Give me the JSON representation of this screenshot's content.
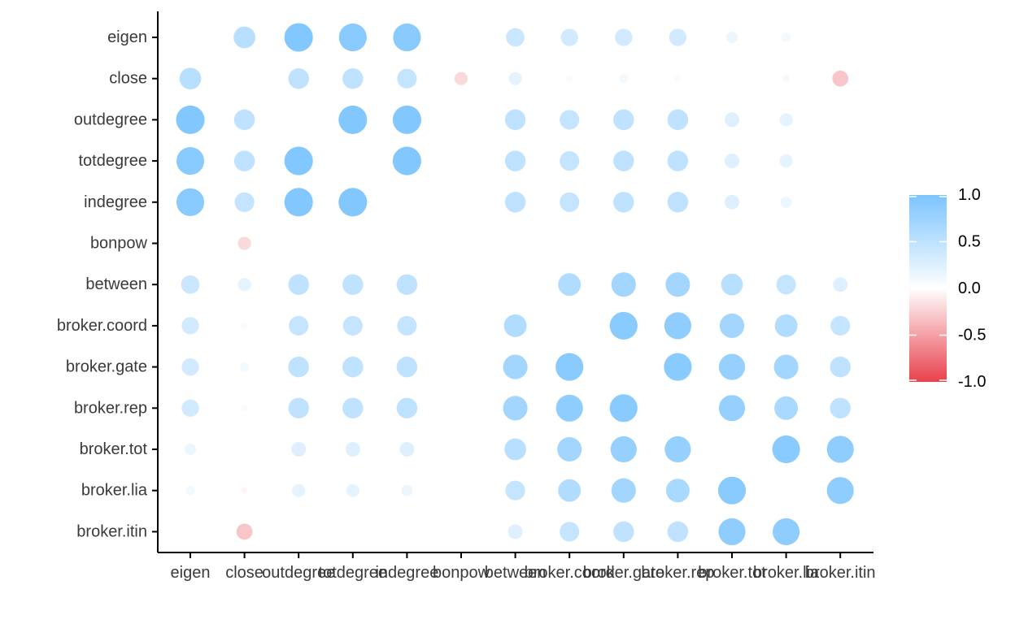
{
  "chart_data": {
    "type": "heatmap",
    "title": "",
    "xlabel": "",
    "ylabel": "",
    "row_labels": [
      "eigen",
      "close",
      "outdegree",
      "totdegree",
      "indegree",
      "bonpow",
      "between",
      "broker.coord",
      "broker.gate",
      "broker.rep",
      "broker.tot",
      "broker.lia",
      "broker.itin"
    ],
    "col_labels": [
      "eigen",
      "close",
      "outdegree",
      "totdegree",
      "indegree",
      "bonpow",
      "between",
      "broker.coord",
      "broker.gate",
      "broker.rep",
      "broker.tot",
      "broker.lia",
      "broker.itin"
    ],
    "values": [
      [
        null,
        0.55,
        0.95,
        0.9,
        0.9,
        0.0,
        0.4,
        0.35,
        0.35,
        0.35,
        0.15,
        0.1,
        0.02
      ],
      [
        0.55,
        null,
        0.5,
        0.5,
        0.45,
        -0.2,
        0.2,
        0.05,
        0.1,
        0.05,
        0.02,
        -0.05,
        -0.3
      ],
      [
        0.95,
        0.5,
        null,
        0.95,
        0.95,
        0.0,
        0.5,
        0.45,
        0.5,
        0.5,
        0.25,
        0.2,
        0.02
      ],
      [
        0.9,
        0.5,
        0.95,
        null,
        0.95,
        0.0,
        0.5,
        0.45,
        0.5,
        0.5,
        0.25,
        0.2,
        0.02
      ],
      [
        0.9,
        0.45,
        0.95,
        0.95,
        null,
        0.0,
        0.5,
        0.45,
        0.5,
        0.5,
        0.25,
        0.15,
        0.02
      ],
      [
        0.0,
        -0.2,
        0.0,
        0.0,
        0.0,
        null,
        0.0,
        0.0,
        0.0,
        0.0,
        0.0,
        0.0,
        0.0
      ],
      [
        0.4,
        0.2,
        0.5,
        0.5,
        0.5,
        0.0,
        null,
        0.6,
        0.7,
        0.7,
        0.55,
        0.45,
        0.25
      ],
      [
        0.35,
        0.05,
        0.45,
        0.45,
        0.45,
        0.0,
        0.6,
        null,
        0.9,
        0.85,
        0.7,
        0.6,
        0.45
      ],
      [
        0.35,
        0.1,
        0.5,
        0.5,
        0.5,
        0.0,
        0.7,
        0.9,
        null,
        0.9,
        0.8,
        0.7,
        0.5
      ],
      [
        0.35,
        0.05,
        0.5,
        0.5,
        0.5,
        0.0,
        0.7,
        0.85,
        0.9,
        null,
        0.8,
        0.65,
        0.5
      ],
      [
        0.15,
        0.02,
        0.25,
        0.25,
        0.25,
        0.0,
        0.55,
        0.7,
        0.8,
        0.8,
        null,
        0.9,
        0.85
      ],
      [
        0.1,
        -0.05,
        0.2,
        0.2,
        0.15,
        0.0,
        0.45,
        0.6,
        0.7,
        0.65,
        0.9,
        null,
        0.85
      ],
      [
        0.02,
        -0.3,
        0.02,
        0.02,
        0.02,
        0.0,
        0.25,
        0.45,
        0.5,
        0.5,
        0.85,
        0.85,
        null
      ]
    ],
    "color_scale": {
      "min": -1.0,
      "max": 1.0,
      "negative_color": "#e8414c",
      "mid_color": "#ffffff",
      "positive_color": "#7cc4ff"
    },
    "legend": {
      "position": "right",
      "ticks": [
        "1.0",
        "0.5",
        "0.0",
        "-0.5",
        "-1.0"
      ],
      "tick_values": [
        1.0,
        0.5,
        0.0,
        -0.5,
        -1.0
      ]
    },
    "grid": false
  }
}
